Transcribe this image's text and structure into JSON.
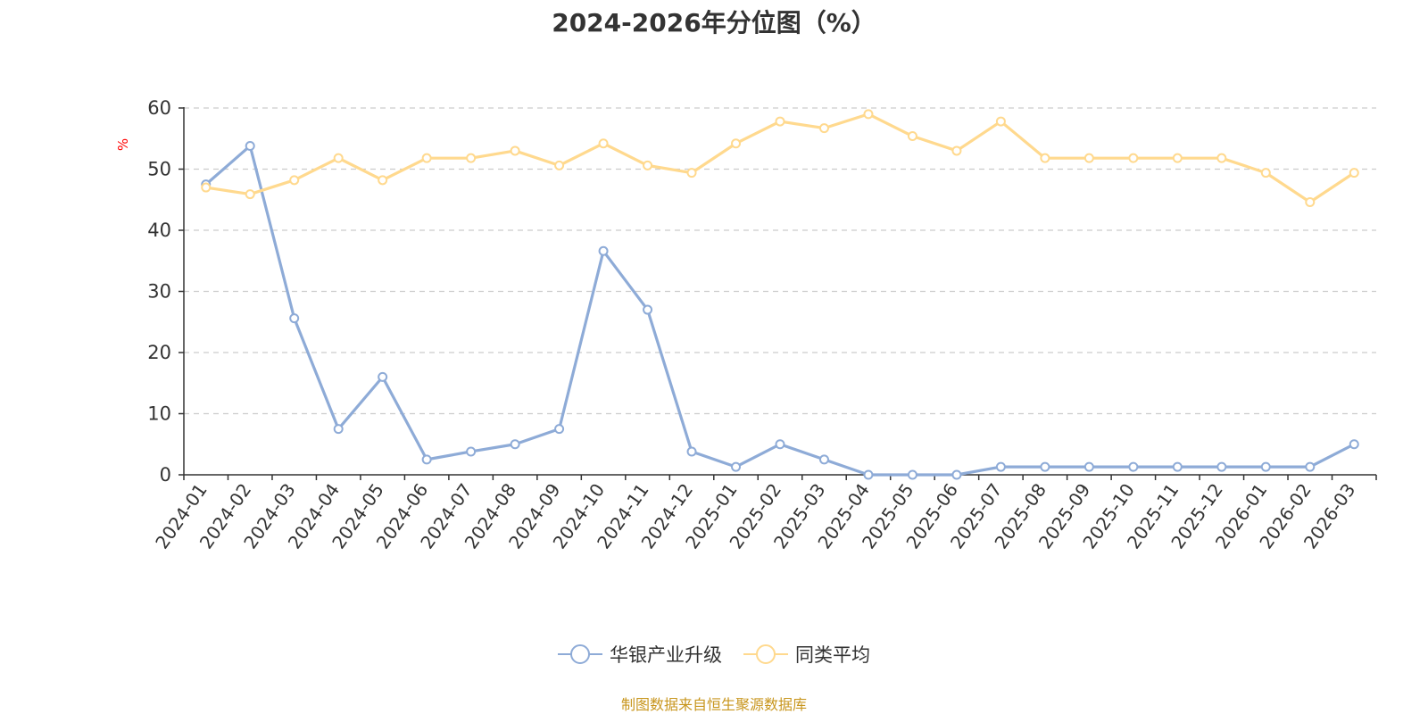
{
  "title": "2024-2026年分位图（%）",
  "source_note": "制图数据来自恒生聚源数据库",
  "colors": {
    "series_1": "#8eabd7",
    "series_2": "#ffd98e",
    "axis": "#333333",
    "grid": "#cccccc",
    "ylabel": "#ff0000"
  },
  "chart_data": {
    "type": "line",
    "title": "2024-2026年分位图（%）",
    "xlabel": "",
    "ylabel": "%",
    "ylim": [
      0,
      60
    ],
    "yticks": [
      0,
      10,
      20,
      30,
      40,
      50,
      60
    ],
    "grid": "horizontal dashed",
    "legend_position": "bottom-center",
    "categories": [
      "2024-01",
      "2024-02",
      "2024-03",
      "2024-04",
      "2024-05",
      "2024-06",
      "2024-07",
      "2024-08",
      "2024-09",
      "2024-10",
      "2024-11",
      "2024-12",
      "2025-01",
      "2025-02",
      "2025-03",
      "2025-04",
      "2025-05",
      "2025-06",
      "2025-07",
      "2025-08",
      "2025-09",
      "2025-10",
      "2025-11",
      "2025-12",
      "2026-01",
      "2026-02",
      "2026-03"
    ],
    "series": [
      {
        "name": "华银产业升级",
        "values": [
          47.5,
          53.8,
          25.6,
          7.5,
          16.0,
          2.5,
          3.8,
          5.0,
          7.5,
          36.6,
          27.0,
          3.8,
          1.3,
          5.0,
          2.5,
          0,
          0,
          0,
          1.3,
          1.3,
          1.3,
          1.3,
          1.3,
          1.3,
          1.3,
          1.3,
          5.0
        ]
      },
      {
        "name": "同类平均",
        "values": [
          47.0,
          45.9,
          48.2,
          51.8,
          48.2,
          51.8,
          51.8,
          53.0,
          50.6,
          54.2,
          50.6,
          49.4,
          54.2,
          57.8,
          56.7,
          59.0,
          55.4,
          53.0,
          57.8,
          51.8,
          51.8,
          51.8,
          51.8,
          51.8,
          49.4,
          44.6,
          49.4
        ]
      }
    ]
  }
}
